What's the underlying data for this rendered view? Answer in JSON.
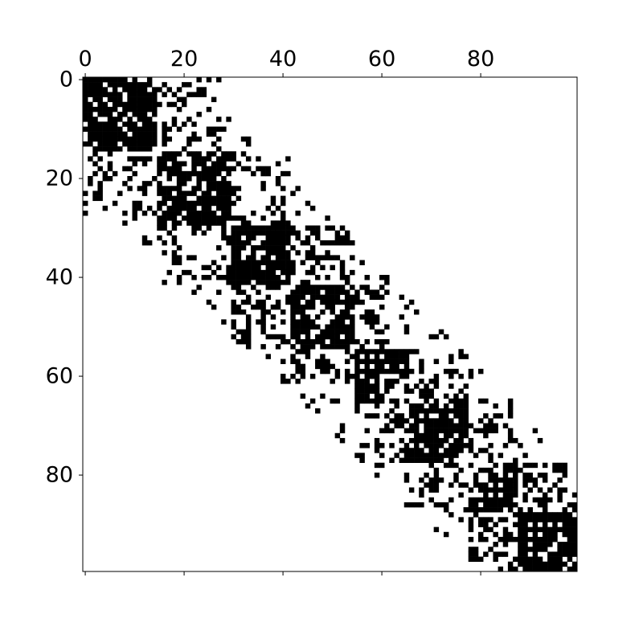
{
  "chart_data": {
    "type": "heatmap",
    "subtype": "sparsity-pattern (spy plot)",
    "title": "",
    "xlabel": "",
    "ylabel": "",
    "x_axis_position": "top",
    "xlim": [
      -0.5,
      99.5
    ],
    "ylim": [
      99.5,
      -0.5
    ],
    "x_ticks": [
      0,
      20,
      40,
      60,
      80
    ],
    "y_ticks": [
      0,
      20,
      40,
      60,
      80
    ],
    "x_tick_labels": [
      "0",
      "20",
      "40",
      "60",
      "80"
    ],
    "y_tick_labels": [
      "0",
      "20",
      "40",
      "60",
      "80"
    ],
    "matrix_size": [
      100,
      100
    ],
    "symmetric": true,
    "grid": false,
    "colors": {
      "nonzero": "#000000",
      "zero": "#ffffff",
      "frame": "#000000"
    },
    "blocks": [
      {
        "rows": [
          0,
          15
        ],
        "cols": [
          0,
          15
        ],
        "density": 0.62
      },
      {
        "rows": [
          0,
          15
        ],
        "cols": [
          15,
          30
        ],
        "density": 0.2
      },
      {
        "rows": [
          15,
          30
        ],
        "cols": [
          15,
          30
        ],
        "density": 0.55
      },
      {
        "rows": [
          15,
          30
        ],
        "cols": [
          30,
          42
        ],
        "density": 0.22
      },
      {
        "rows": [
          30,
          42
        ],
        "cols": [
          30,
          42
        ],
        "density": 0.6
      },
      {
        "rows": [
          30,
          45
        ],
        "cols": [
          42,
          55
        ],
        "density": 0.25
      },
      {
        "rows": [
          42,
          55
        ],
        "cols": [
          42,
          55
        ],
        "density": 0.45
      },
      {
        "rows": [
          42,
          55
        ],
        "cols": [
          55,
          66
        ],
        "density": 0.22
      },
      {
        "rows": [
          55,
          66
        ],
        "cols": [
          55,
          66
        ],
        "density": 0.55
      },
      {
        "rows": [
          55,
          66
        ],
        "cols": [
          66,
          78
        ],
        "density": 0.25
      },
      {
        "rows": [
          66,
          78
        ],
        "cols": [
          66,
          78
        ],
        "density": 0.5
      },
      {
        "rows": [
          66,
          78
        ],
        "cols": [
          78,
          88
        ],
        "density": 0.22
      },
      {
        "rows": [
          78,
          88
        ],
        "cols": [
          78,
          88
        ],
        "density": 0.45
      },
      {
        "rows": [
          78,
          90
        ],
        "cols": [
          88,
          100
        ],
        "density": 0.3
      },
      {
        "rows": [
          88,
          100
        ],
        "cols": [
          88,
          100
        ],
        "density": 0.7
      }
    ],
    "diagonal_band": {
      "bandwidth": 22,
      "density": 0.1
    },
    "seed": 12345
  }
}
